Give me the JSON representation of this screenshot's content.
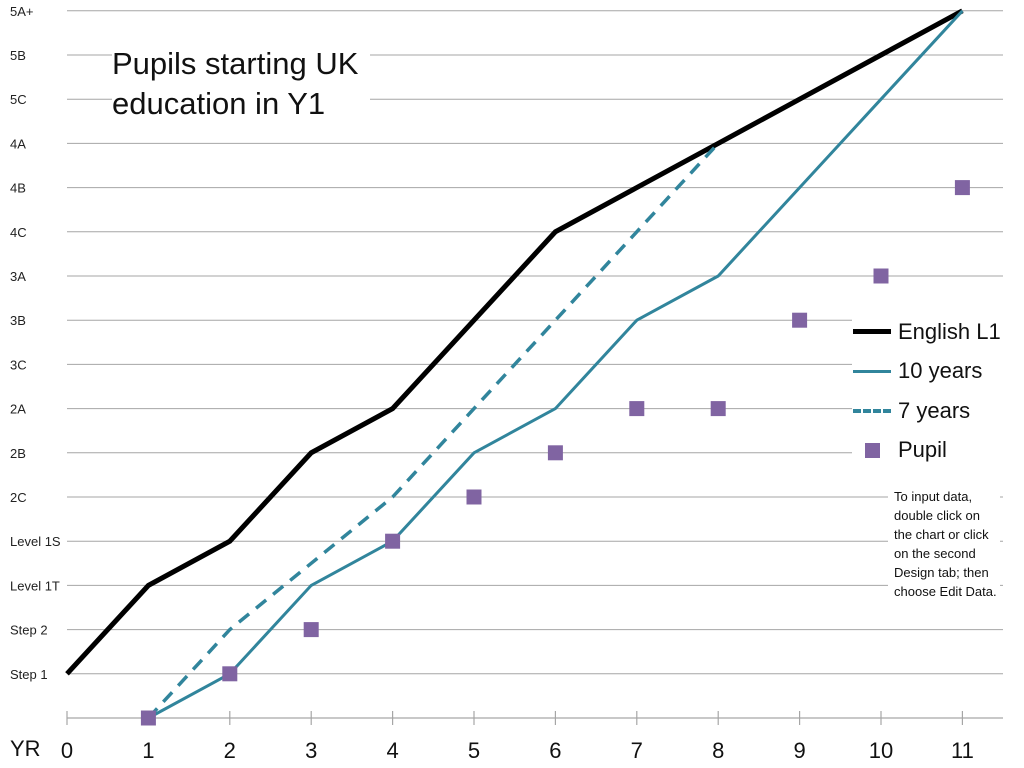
{
  "chart_data": {
    "type": "line",
    "title": "Pupils starting UK education in Y1",
    "y_levels": [
      "Step 1",
      "Step 2",
      "Level 1T",
      "Level 1S",
      "2C",
      "2B",
      "2A",
      "3C",
      "3B",
      "3A",
      "4C",
      "4B",
      "4A",
      "5C",
      "5B",
      "5A+"
    ],
    "x_axis_label": "YR",
    "x": [
      0,
      1,
      2,
      3,
      4,
      5,
      6,
      7,
      8,
      9,
      10,
      11
    ],
    "xlim": [
      0,
      11
    ],
    "ylim": [
      0,
      16
    ],
    "grid": true,
    "legend_position": "right",
    "series": [
      {
        "name": "English L1",
        "style": "solid-thick",
        "color": "#000000",
        "points": [
          [
            0,
            1
          ],
          [
            1,
            3
          ],
          [
            2,
            4
          ],
          [
            3,
            6
          ],
          [
            4,
            7
          ],
          [
            5,
            9
          ],
          [
            6,
            11
          ],
          [
            7,
            12
          ],
          [
            8,
            13
          ],
          [
            9,
            14
          ],
          [
            10,
            15
          ],
          [
            11,
            16
          ]
        ]
      },
      {
        "name": "10 years",
        "style": "solid",
        "color": "#31859c",
        "points": [
          [
            1,
            0
          ],
          [
            2,
            1
          ],
          [
            3,
            3
          ],
          [
            4,
            4
          ],
          [
            5,
            6
          ],
          [
            6,
            7
          ],
          [
            7,
            9
          ],
          [
            8,
            10
          ],
          [
            9,
            12
          ],
          [
            10,
            14
          ],
          [
            11,
            16
          ]
        ]
      },
      {
        "name": "7 years",
        "style": "dashed",
        "color": "#31859c",
        "points": [
          [
            1,
            0
          ],
          [
            2,
            2
          ],
          [
            3,
            3.5
          ],
          [
            4,
            5
          ],
          [
            5,
            7
          ],
          [
            6,
            9
          ],
          [
            7,
            11
          ],
          [
            8,
            13
          ]
        ]
      },
      {
        "name": "Pupil",
        "style": "marker",
        "color": "#8064a2",
        "points": [
          [
            1,
            0
          ],
          [
            2,
            1
          ],
          [
            3,
            2
          ],
          [
            4,
            4
          ],
          [
            5,
            5
          ],
          [
            6,
            6
          ],
          [
            7,
            7
          ],
          [
            8,
            7
          ],
          [
            9,
            9
          ],
          [
            10,
            10
          ],
          [
            11,
            12
          ]
        ]
      }
    ],
    "annotation": "To input data, double click on the chart or click on the second Design tab; then choose Edit Data."
  }
}
